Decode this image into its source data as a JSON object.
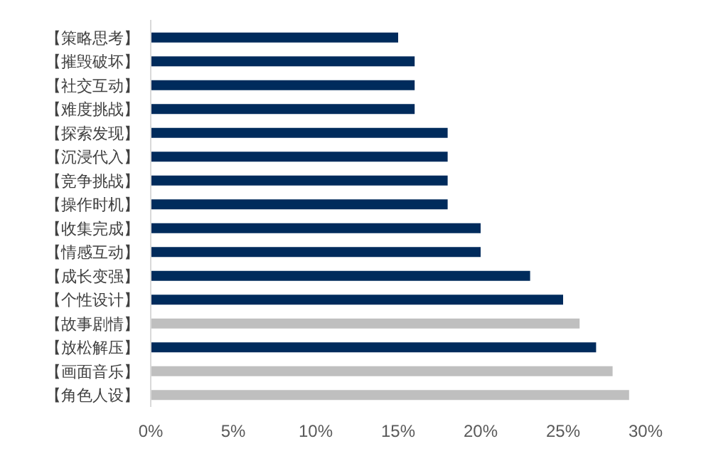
{
  "chart_data": {
    "type": "bar",
    "orientation": "horizontal",
    "categories": [
      "【策略思考】",
      "【摧毁破坏】",
      "【社交互动】",
      "【难度挑战】",
      "【探索发现】",
      "【沉浸代入】",
      "【竞争挑战】",
      "【操作时机】",
      "【收集完成】",
      "【情感互动】",
      "【成长变强】",
      "【个性设计】",
      "【故事剧情】",
      "【放松解压】",
      "【画面音乐】",
      "【角色人设】"
    ],
    "values": [
      15,
      16,
      16,
      16,
      18,
      18,
      18,
      18,
      20,
      20,
      23,
      25,
      26,
      27,
      28,
      29
    ],
    "colors": [
      "#002b5c",
      "#002b5c",
      "#002b5c",
      "#002b5c",
      "#002b5c",
      "#002b5c",
      "#002b5c",
      "#002b5c",
      "#002b5c",
      "#002b5c",
      "#002b5c",
      "#002b5c",
      "#bfbfbf",
      "#002b5c",
      "#bfbfbf",
      "#bfbfbf"
    ],
    "xlim": [
      0,
      30
    ],
    "xticks": [
      {
        "value": 0,
        "label": "0%"
      },
      {
        "value": 5,
        "label": "5%"
      },
      {
        "value": 10,
        "label": "10%"
      },
      {
        "value": 15,
        "label": "15%"
      },
      {
        "value": 20,
        "label": "20%"
      },
      {
        "value": 25,
        "label": "25%"
      },
      {
        "value": 30,
        "label": "30%"
      }
    ],
    "grid": false
  }
}
